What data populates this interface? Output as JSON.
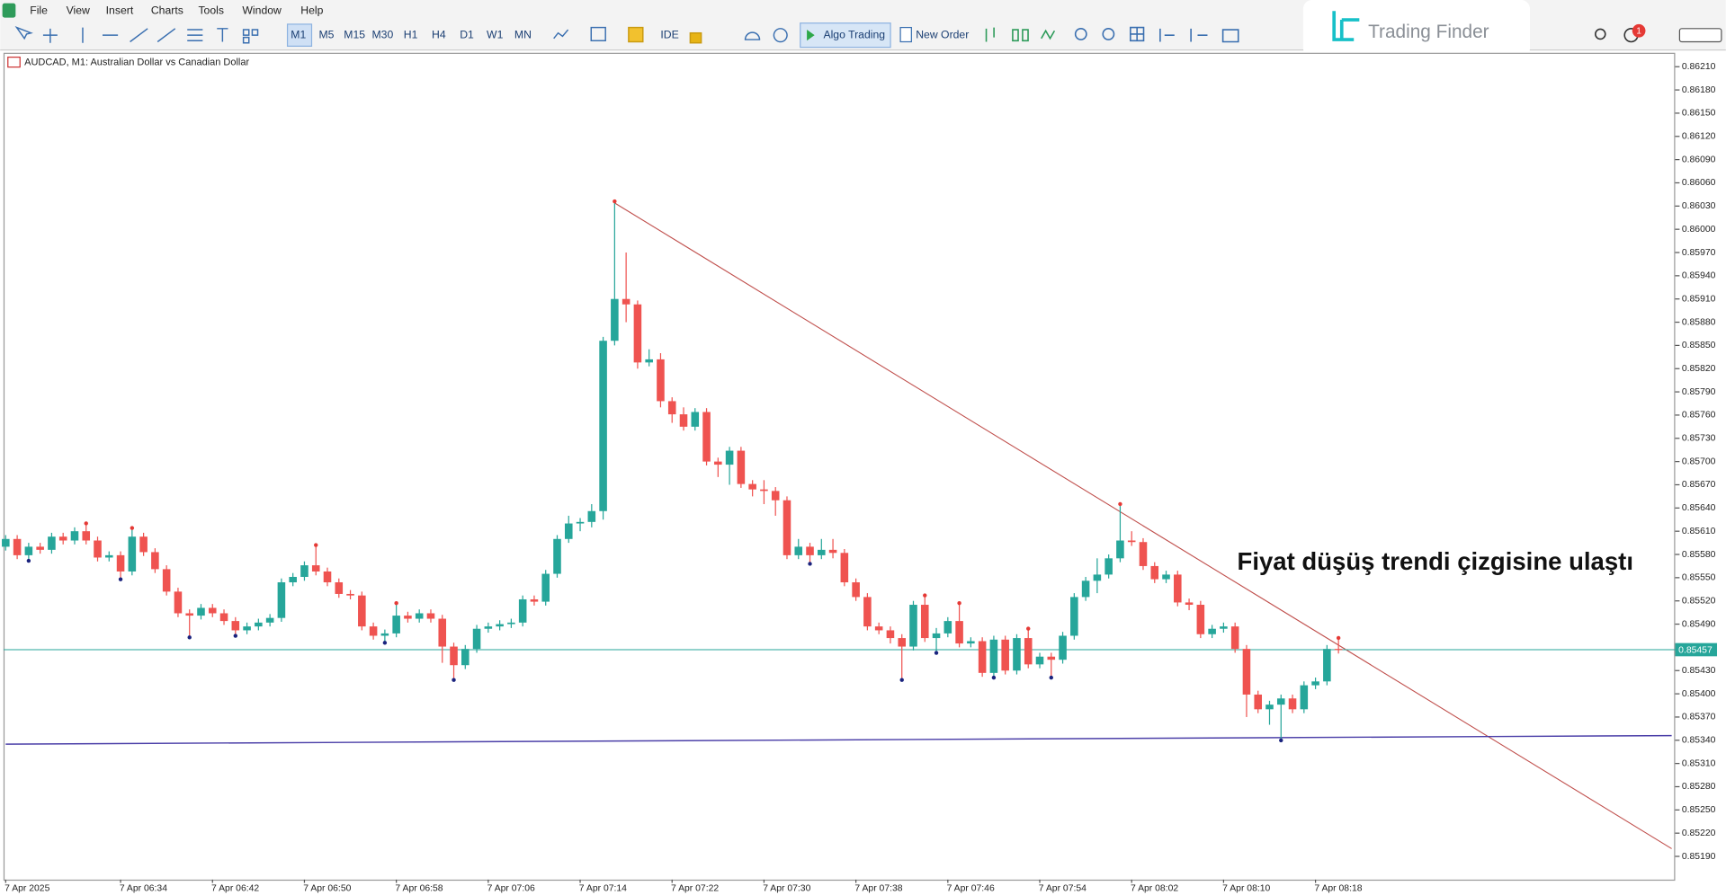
{
  "window": {
    "menu": [
      "File",
      "View",
      "Insert",
      "Charts",
      "Tools",
      "Window",
      "Help"
    ],
    "timeframes": [
      "M1",
      "M5",
      "M15",
      "M30",
      "H1",
      "H4",
      "D1",
      "W1",
      "MN"
    ],
    "buttons": {
      "ide": "IDE",
      "algo": "Algo Trading",
      "order": "New Order"
    },
    "logo": "Trading Finder",
    "badge": "1"
  },
  "chart_data": {
    "type": "candlestick",
    "title": "AUDCAD, M1:  Australian Dollar vs Canadian Dollar",
    "categories": [
      "7 Apr 2025",
      null,
      null,
      null,
      null,
      null,
      null,
      null,
      null,
      null,
      "7 Apr 06:34",
      null,
      null,
      null,
      null,
      null,
      null,
      null,
      "7 Apr 06:42",
      null,
      null,
      null,
      null,
      null,
      null,
      null,
      "7 Apr 06:50",
      null,
      null,
      null,
      null,
      null,
      null,
      null,
      "7 Apr 06:58",
      null,
      null,
      null,
      null,
      null,
      null,
      null,
      "7 Apr 07:06",
      null,
      null,
      null,
      null,
      null,
      null,
      null,
      "7 Apr 07:14",
      null,
      null,
      null,
      null,
      null,
      null,
      null,
      "7 Apr 07:22",
      null,
      null,
      null,
      null,
      null,
      null,
      null,
      "7 Apr 07:30",
      null,
      null,
      null,
      null,
      null,
      null,
      null,
      "7 Apr 07:38",
      null,
      null,
      null,
      null,
      null,
      null,
      null,
      "7 Apr 07:46",
      null,
      null,
      null,
      null,
      null,
      null,
      null,
      "7 Apr 07:54",
      null,
      null,
      null,
      null,
      null,
      null,
      null,
      "7 Apr 08:02",
      null,
      null,
      null,
      null,
      null,
      null,
      null,
      "7 Apr 08:10",
      null,
      null,
      null,
      null,
      null,
      null,
      null,
      "7 Apr 08:18",
      null,
      null
    ],
    "open": [
      0.8559,
      0.856,
      0.85579,
      0.8559,
      0.85586,
      0.85603,
      0.85598,
      0.8561,
      0.85598,
      0.85576,
      0.85579,
      0.85558,
      0.85603,
      0.85583,
      0.85561,
      0.85532,
      0.85504,
      0.85501,
      0.85511,
      0.85504,
      0.85494,
      0.85482,
      0.85487,
      0.85492,
      0.85498,
      0.85544,
      0.85551,
      0.85566,
      0.85558,
      0.85544,
      0.85529,
      0.85527,
      0.85487,
      0.85475,
      0.85478,
      0.85501,
      0.85497,
      0.85504,
      0.85497,
      0.85461,
      0.85437,
      0.85458,
      0.85484,
      0.85487,
      0.8549,
      0.85492,
      0.85522,
      0.85519,
      0.85555,
      0.856,
      0.8562,
      0.85622,
      0.85636,
      0.85856,
      0.8591,
      0.85903,
      0.85828,
      0.85832,
      0.85778,
      0.85761,
      0.85745,
      0.85764,
      0.857,
      0.85696,
      0.85714,
      0.85671,
      0.85664,
      0.85662,
      0.8565,
      0.85579,
      0.8559,
      0.85579,
      0.85586,
      0.85582,
      0.85544,
      0.85525,
      0.85487,
      0.85482,
      0.85472,
      0.85461,
      0.85515,
      0.85472,
      0.85478,
      0.85494,
      0.85465,
      0.85468,
      0.85427,
      0.8547,
      0.8543,
      0.85472,
      0.85438,
      0.85448,
      0.85444,
      0.85475,
      0.85525,
      0.85546,
      0.85554,
      0.85575,
      0.85598,
      0.85596,
      0.85565,
      0.85548,
      0.85554,
      0.85518,
      0.85515,
      0.85477,
      0.85484,
      0.85487,
      0.85458,
      0.85399,
      0.8538,
      0.85386,
      0.85394,
      0.8538,
      0.85411,
      0.85416,
      0.85458
    ],
    "high": [
      0.85605,
      0.85605,
      0.85595,
      0.85595,
      0.85608,
      0.85608,
      0.85615,
      0.85618,
      0.85603,
      0.85584,
      0.85584,
      0.85612,
      0.85608,
      0.85588,
      0.85566,
      0.85537,
      0.85509,
      0.85516,
      0.85516,
      0.85509,
      0.85499,
      0.85492,
      0.85497,
      0.85503,
      0.85549,
      0.85556,
      0.85571,
      0.8559,
      0.85563,
      0.85549,
      0.85534,
      0.85532,
      0.85492,
      0.85483,
      0.85515,
      0.85506,
      0.85509,
      0.85509,
      0.85502,
      0.85466,
      0.85463,
      0.85489,
      0.85492,
      0.85495,
      0.85497,
      0.85527,
      0.85527,
      0.8556,
      0.85605,
      0.8563,
      0.85627,
      0.85645,
      0.85861,
      0.86034,
      0.8597,
      0.85908,
      0.85845,
      0.8584,
      0.85783,
      0.8577,
      0.85769,
      0.85769,
      0.85705,
      0.85719,
      0.85719,
      0.85676,
      0.85676,
      0.85667,
      0.85655,
      0.856,
      0.85595,
      0.856,
      0.856,
      0.85587,
      0.85549,
      0.8553,
      0.85492,
      0.85487,
      0.85477,
      0.8552,
      0.85525,
      0.85485,
      0.85499,
      0.85515,
      0.85473,
      0.85473,
      0.85475,
      0.85475,
      0.85477,
      0.85482,
      0.85453,
      0.85453,
      0.8548,
      0.8553,
      0.85551,
      0.85575,
      0.8558,
      0.85643,
      0.8561,
      0.85601,
      0.8557,
      0.85559,
      0.85559,
      0.85523,
      0.8552,
      0.85489,
      0.85492,
      0.85492,
      0.85463,
      0.85404,
      0.85391,
      0.85399,
      0.85399,
      0.85416,
      0.85421,
      0.85463,
      0.8547
    ],
    "low": [
      0.85585,
      0.85574,
      0.85574,
      0.85581,
      0.85581,
      0.85593,
      0.85593,
      0.85593,
      0.85571,
      0.85571,
      0.8555,
      0.85553,
      0.85578,
      0.85556,
      0.85527,
      0.85499,
      0.85475,
      0.85496,
      0.85499,
      0.85489,
      0.85477,
      0.85477,
      0.85482,
      0.85487,
      0.85493,
      0.85539,
      0.85546,
      0.85553,
      0.85539,
      0.85524,
      0.85522,
      0.85482,
      0.8547,
      0.85468,
      0.85473,
      0.85492,
      0.85492,
      0.85492,
      0.8544,
      0.8542,
      0.85432,
      0.85453,
      0.85479,
      0.85482,
      0.85485,
      0.85487,
      0.85514,
      0.85514,
      0.8555,
      0.85595,
      0.8561,
      0.85615,
      0.85625,
      0.8585,
      0.8588,
      0.8582,
      0.85823,
      0.8577,
      0.8575,
      0.8574,
      0.8574,
      0.85695,
      0.8568,
      0.8567,
      0.85666,
      0.85655,
      0.85645,
      0.8563,
      0.85574,
      0.85574,
      0.8557,
      0.85574,
      0.85575,
      0.85539,
      0.8552,
      0.85482,
      0.85477,
      0.85465,
      0.8542,
      0.85456,
      0.85467,
      0.85455,
      0.85473,
      0.8546,
      0.8546,
      0.85422,
      0.85423,
      0.85425,
      0.85425,
      0.85433,
      0.85433,
      0.85423,
      0.85439,
      0.8547,
      0.8552,
      0.8553,
      0.85549,
      0.8557,
      0.85591,
      0.8556,
      0.85543,
      0.85543,
      0.85513,
      0.85508,
      0.85472,
      0.85472,
      0.85479,
      0.85453,
      0.8537,
      0.85375,
      0.8536,
      0.85342,
      0.85375,
      0.85375,
      0.85406,
      0.85411,
      0.85452
    ],
    "close": [
      0.856,
      0.85579,
      0.8559,
      0.85586,
      0.85603,
      0.85598,
      0.8561,
      0.85598,
      0.85576,
      0.85579,
      0.85558,
      0.85603,
      0.85583,
      0.85561,
      0.85532,
      0.85504,
      0.85501,
      0.85511,
      0.85504,
      0.85494,
      0.85482,
      0.85487,
      0.85492,
      0.85498,
      0.85544,
      0.85551,
      0.85566,
      0.85558,
      0.85544,
      0.85529,
      0.85527,
      0.85487,
      0.85475,
      0.85478,
      0.85501,
      0.85497,
      0.85504,
      0.85497,
      0.85461,
      0.85437,
      0.85458,
      0.85484,
      0.85487,
      0.8549,
      0.85492,
      0.85522,
      0.85519,
      0.85555,
      0.856,
      0.8562,
      0.85622,
      0.85636,
      0.85856,
      0.8591,
      0.85903,
      0.85828,
      0.85832,
      0.85778,
      0.85761,
      0.85745,
      0.85764,
      0.857,
      0.85696,
      0.85714,
      0.85671,
      0.85664,
      0.85662,
      0.8565,
      0.85579,
      0.8559,
      0.85579,
      0.85586,
      0.85582,
      0.85544,
      0.85525,
      0.85487,
      0.85482,
      0.85472,
      0.85461,
      0.85515,
      0.85472,
      0.85478,
      0.85494,
      0.85465,
      0.85468,
      0.85427,
      0.8547,
      0.8543,
      0.85472,
      0.85438,
      0.85448,
      0.85444,
      0.85475,
      0.85525,
      0.85546,
      0.85554,
      0.85575,
      0.85598,
      0.85596,
      0.85565,
      0.85548,
      0.85554,
      0.85518,
      0.85515,
      0.85477,
      0.85484,
      0.85487,
      0.85458,
      0.85399,
      0.8538,
      0.85386,
      0.85394,
      0.8538,
      0.85411,
      0.85416,
      0.85458,
      0.85457
    ],
    "up_color": "#26a69a",
    "down_color": "#ef5350",
    "ylim": [
      0.8516,
      0.86228
    ],
    "yticks": [
      {
        "value": 0.8621,
        "label": "0.86210"
      },
      {
        "value": 0.8618,
        "label": "0.86180"
      },
      {
        "value": 0.8615,
        "label": "0.86150"
      },
      {
        "value": 0.8612,
        "label": "0.86120"
      },
      {
        "value": 0.8609,
        "label": "0.86090"
      },
      {
        "value": 0.8606,
        "label": "0.86060"
      },
      {
        "value": 0.8603,
        "label": "0.86030"
      },
      {
        "value": 0.86,
        "label": "0.86000"
      },
      {
        "value": 0.8597,
        "label": "0.85970"
      },
      {
        "value": 0.8594,
        "label": "0.85940"
      },
      {
        "value": 0.8591,
        "label": "0.85910"
      },
      {
        "value": 0.8588,
        "label": "0.85880"
      },
      {
        "value": 0.8585,
        "label": "0.85850"
      },
      {
        "value": 0.8582,
        "label": "0.85820"
      },
      {
        "value": 0.8579,
        "label": "0.85790"
      },
      {
        "value": 0.8576,
        "label": "0.85760"
      },
      {
        "value": 0.8573,
        "label": "0.85730"
      },
      {
        "value": 0.857,
        "label": "0.85700"
      },
      {
        "value": 0.8567,
        "label": "0.85670"
      },
      {
        "value": 0.8564,
        "label": "0.85640"
      },
      {
        "value": 0.8561,
        "label": "0.85610"
      },
      {
        "value": 0.8558,
        "label": "0.85580"
      },
      {
        "value": 0.8555,
        "label": "0.85550"
      },
      {
        "value": 0.8552,
        "label": "0.85520"
      },
      {
        "value": 0.8549,
        "label": "0.85490"
      },
      {
        "value": 0.8543,
        "label": "0.85430"
      },
      {
        "value": 0.854,
        "label": "0.85400"
      },
      {
        "value": 0.8537,
        "label": "0.85370"
      },
      {
        "value": 0.8534,
        "label": "0.85340"
      },
      {
        "value": 0.8531,
        "label": "0.85310"
      },
      {
        "value": 0.8528,
        "label": "0.85280"
      },
      {
        "value": 0.8525,
        "label": "0.85250"
      },
      {
        "value": 0.8522,
        "label": "0.85220"
      },
      {
        "value": 0.8519,
        "label": "0.85190"
      }
    ],
    "grid": false,
    "bid": 0.85457,
    "bid_color": "#26a69a",
    "lines": [
      {
        "from": [
          53,
          0.86034
        ],
        "to": [
          145,
          0.852
        ],
        "color": "#c0504d"
      },
      {
        "from": [
          0,
          0.85335
        ],
        "to": [
          145,
          0.85346
        ],
        "color": "#4b3fa8"
      }
    ],
    "fractals": {
      "up": [
        7,
        11,
        27,
        34,
        53,
        80,
        83,
        89,
        97,
        116
      ],
      "down": [
        2,
        10,
        16,
        20,
        33,
        39,
        70,
        78,
        81,
        86,
        91,
        111
      ],
      "up_color": "#e53935",
      "down_color": "#1a237e"
    },
    "annotation": "Fiyat düşüş trendi çizgisine ulaştı"
  }
}
